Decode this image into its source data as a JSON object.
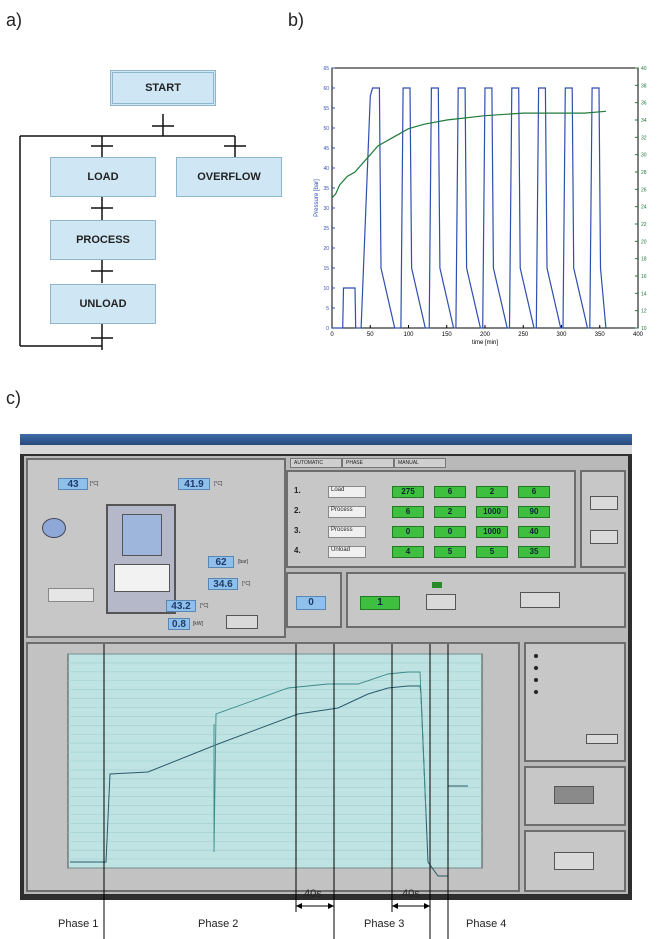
{
  "labels": {
    "a": "a)",
    "b": "b)",
    "c": "c)"
  },
  "flowchart": {
    "start": "START",
    "load": "LOAD",
    "overflow": "OVERFLOW",
    "process": "PROCESS",
    "unload": "UNLOAD"
  },
  "chart_data": {
    "type": "line",
    "xlabel": "time [min]",
    "ylabel": "Pressure [bar]",
    "xlim": [
      0,
      400
    ],
    "ylim": [
      0,
      65
    ],
    "y2lim": [
      10,
      40
    ],
    "xticks": [
      0,
      50,
      100,
      150,
      200,
      250,
      300,
      350,
      400
    ],
    "yticks": [
      0,
      5,
      10,
      15,
      20,
      25,
      30,
      35,
      40,
      45,
      50,
      55,
      60,
      65
    ],
    "y2ticks": [
      10,
      12,
      14,
      16,
      18,
      20,
      22,
      24,
      26,
      28,
      30,
      32,
      34,
      36,
      38,
      40
    ],
    "series": [
      {
        "axis": "left",
        "color": "#2f4fb0",
        "x": [
          0,
          14,
          15,
          30,
          31,
          38,
          50,
          53,
          62,
          64,
          82,
          90,
          93,
          102,
          104,
          122,
          127,
          130,
          139,
          141,
          159,
          162,
          165,
          174,
          176,
          194,
          197,
          200,
          209,
          211,
          229,
          232,
          235,
          244,
          246,
          264,
          267,
          270,
          279,
          281,
          299,
          302,
          305,
          314,
          316,
          334,
          337,
          340,
          349,
          351,
          358
        ],
        "values": [
          0,
          0,
          10,
          10,
          0,
          0,
          58,
          60,
          60,
          15,
          0,
          0,
          60,
          60,
          15,
          0,
          0,
          60,
          60,
          15,
          0,
          0,
          60,
          60,
          15,
          0,
          0,
          60,
          60,
          15,
          0,
          0,
          60,
          60,
          15,
          0,
          0,
          60,
          60,
          15,
          0,
          0,
          60,
          60,
          15,
          0,
          0,
          60,
          60,
          15,
          0
        ]
      },
      {
        "axis": "right",
        "color": "#1e7a3a",
        "x": [
          0,
          5,
          10,
          20,
          30,
          40,
          50,
          60,
          80,
          100,
          120,
          150,
          200,
          250,
          300,
          330,
          358
        ],
        "values": [
          25,
          25.5,
          26.5,
          27.5,
          28,
          29,
          30,
          31,
          32,
          33,
          33.5,
          34,
          34.5,
          34.8,
          34.8,
          34.8,
          35
        ]
      }
    ]
  },
  "hmi": {
    "tabs": [
      "AUTOMATIC",
      "PHASE",
      "MANUAL"
    ],
    "temp1": "43",
    "temp1_unit": "[°C]",
    "temp2": "41.9",
    "temp2_unit": "[°C]",
    "press": "62",
    "press_unit": "[bar]",
    "temp3": "34.6",
    "temp3_unit": "[°C]",
    "temp4": "43.2",
    "temp4_unit": "[°C]",
    "power": "0.8",
    "power_unit": "[kW]",
    "rows": [
      {
        "num": "1.",
        "name": "Load",
        "c1": "275",
        "c2": "6",
        "c3": "2",
        "c4": "6"
      },
      {
        "num": "2.",
        "name": "Process",
        "c1": "6",
        "c2": "2",
        "c3": "1000",
        "c4": "90"
      },
      {
        "num": "3.",
        "name": "Process",
        "c1": "0",
        "c2": "0",
        "c3": "1000",
        "c4": "40"
      },
      {
        "num": "4.",
        "name": "Unload",
        "c1": "4",
        "c2": "5",
        "c3": "5",
        "c4": "35"
      }
    ],
    "cycles": "0",
    "counter": "1"
  },
  "annotations": {
    "phase1": "Phase 1",
    "phase2": "Phase 2",
    "phase3": "Phase 3",
    "phase4": "Phase 4",
    "dur1": "40s",
    "dur2": "40s"
  }
}
